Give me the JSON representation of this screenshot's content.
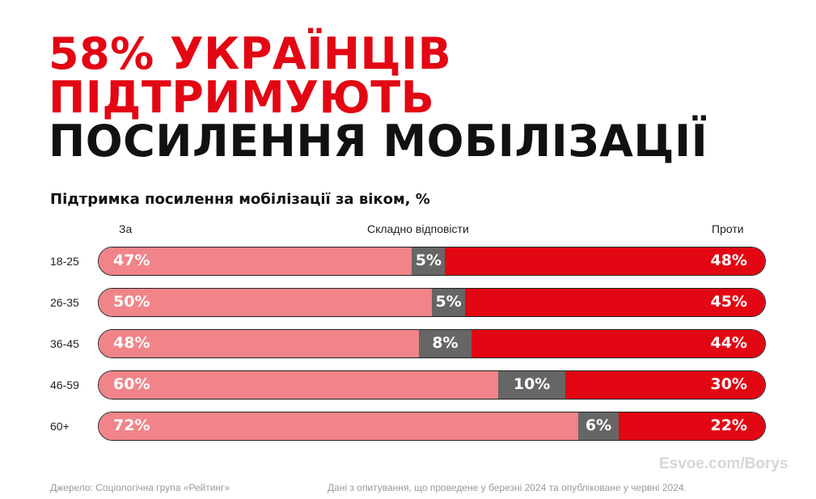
{
  "headline": {
    "line1": "58% УКРАЇНЦІВ",
    "line2": "ПІДТРИМУЮТЬ",
    "line3": "ПОСИЛЕННЯ МОБІЛІЗАЦІЇ"
  },
  "colors": {
    "for": "#f08489",
    "hard": "#666666",
    "against": "#e30613",
    "accent": "#e30613"
  },
  "chart_data": {
    "type": "bar",
    "stacked": true,
    "orientation": "horizontal",
    "title": "Підтримка посилення мобілізації за віком, %",
    "categories": [
      "18-25",
      "26-35",
      "36-45",
      "46-59",
      "60+"
    ],
    "series": [
      {
        "name": "За",
        "values": [
          47,
          50,
          48,
          60,
          72
        ]
      },
      {
        "name": "Складно відповісти",
        "values": [
          5,
          5,
          8,
          10,
          6
        ]
      },
      {
        "name": "Проти",
        "values": [
          48,
          45,
          44,
          30,
          22
        ]
      }
    ]
  },
  "footer": {
    "source": "Джерело: Соціологічна група «Рейтинг»",
    "note": "Дані з опитування, що проведене у березні 2024 та опубліковане у червні 2024."
  },
  "watermark": "Esvoe.com/Borys"
}
